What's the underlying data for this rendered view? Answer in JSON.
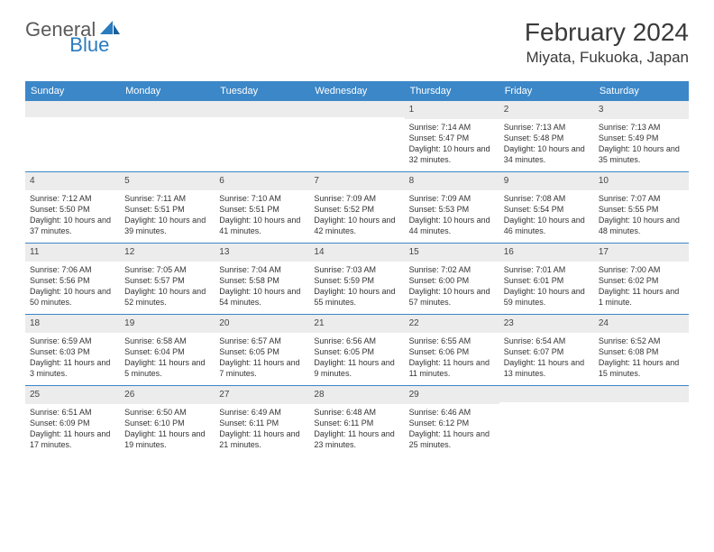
{
  "logo": {
    "text1": "General",
    "text2": "Blue"
  },
  "title": "February 2024",
  "location": "Miyata, Fukuoka, Japan",
  "colors": {
    "header_bg": "#3b87c8",
    "header_text": "#ffffff",
    "daynum_bg": "#ececec",
    "week_border": "#3b87c8",
    "body_text": "#333333",
    "logo_gray": "#5a5a5a",
    "logo_blue": "#2b7bbf"
  },
  "day_names": [
    "Sunday",
    "Monday",
    "Tuesday",
    "Wednesday",
    "Thursday",
    "Friday",
    "Saturday"
  ],
  "weeks": [
    [
      {
        "n": "",
        "sr": "",
        "ss": "",
        "dl": ""
      },
      {
        "n": "",
        "sr": "",
        "ss": "",
        "dl": ""
      },
      {
        "n": "",
        "sr": "",
        "ss": "",
        "dl": ""
      },
      {
        "n": "",
        "sr": "",
        "ss": "",
        "dl": ""
      },
      {
        "n": "1",
        "sr": "Sunrise: 7:14 AM",
        "ss": "Sunset: 5:47 PM",
        "dl": "Daylight: 10 hours and 32 minutes."
      },
      {
        "n": "2",
        "sr": "Sunrise: 7:13 AM",
        "ss": "Sunset: 5:48 PM",
        "dl": "Daylight: 10 hours and 34 minutes."
      },
      {
        "n": "3",
        "sr": "Sunrise: 7:13 AM",
        "ss": "Sunset: 5:49 PM",
        "dl": "Daylight: 10 hours and 35 minutes."
      }
    ],
    [
      {
        "n": "4",
        "sr": "Sunrise: 7:12 AM",
        "ss": "Sunset: 5:50 PM",
        "dl": "Daylight: 10 hours and 37 minutes."
      },
      {
        "n": "5",
        "sr": "Sunrise: 7:11 AM",
        "ss": "Sunset: 5:51 PM",
        "dl": "Daylight: 10 hours and 39 minutes."
      },
      {
        "n": "6",
        "sr": "Sunrise: 7:10 AM",
        "ss": "Sunset: 5:51 PM",
        "dl": "Daylight: 10 hours and 41 minutes."
      },
      {
        "n": "7",
        "sr": "Sunrise: 7:09 AM",
        "ss": "Sunset: 5:52 PM",
        "dl": "Daylight: 10 hours and 42 minutes."
      },
      {
        "n": "8",
        "sr": "Sunrise: 7:09 AM",
        "ss": "Sunset: 5:53 PM",
        "dl": "Daylight: 10 hours and 44 minutes."
      },
      {
        "n": "9",
        "sr": "Sunrise: 7:08 AM",
        "ss": "Sunset: 5:54 PM",
        "dl": "Daylight: 10 hours and 46 minutes."
      },
      {
        "n": "10",
        "sr": "Sunrise: 7:07 AM",
        "ss": "Sunset: 5:55 PM",
        "dl": "Daylight: 10 hours and 48 minutes."
      }
    ],
    [
      {
        "n": "11",
        "sr": "Sunrise: 7:06 AM",
        "ss": "Sunset: 5:56 PM",
        "dl": "Daylight: 10 hours and 50 minutes."
      },
      {
        "n": "12",
        "sr": "Sunrise: 7:05 AM",
        "ss": "Sunset: 5:57 PM",
        "dl": "Daylight: 10 hours and 52 minutes."
      },
      {
        "n": "13",
        "sr": "Sunrise: 7:04 AM",
        "ss": "Sunset: 5:58 PM",
        "dl": "Daylight: 10 hours and 54 minutes."
      },
      {
        "n": "14",
        "sr": "Sunrise: 7:03 AM",
        "ss": "Sunset: 5:59 PM",
        "dl": "Daylight: 10 hours and 55 minutes."
      },
      {
        "n": "15",
        "sr": "Sunrise: 7:02 AM",
        "ss": "Sunset: 6:00 PM",
        "dl": "Daylight: 10 hours and 57 minutes."
      },
      {
        "n": "16",
        "sr": "Sunrise: 7:01 AM",
        "ss": "Sunset: 6:01 PM",
        "dl": "Daylight: 10 hours and 59 minutes."
      },
      {
        "n": "17",
        "sr": "Sunrise: 7:00 AM",
        "ss": "Sunset: 6:02 PM",
        "dl": "Daylight: 11 hours and 1 minute."
      }
    ],
    [
      {
        "n": "18",
        "sr": "Sunrise: 6:59 AM",
        "ss": "Sunset: 6:03 PM",
        "dl": "Daylight: 11 hours and 3 minutes."
      },
      {
        "n": "19",
        "sr": "Sunrise: 6:58 AM",
        "ss": "Sunset: 6:04 PM",
        "dl": "Daylight: 11 hours and 5 minutes."
      },
      {
        "n": "20",
        "sr": "Sunrise: 6:57 AM",
        "ss": "Sunset: 6:05 PM",
        "dl": "Daylight: 11 hours and 7 minutes."
      },
      {
        "n": "21",
        "sr": "Sunrise: 6:56 AM",
        "ss": "Sunset: 6:05 PM",
        "dl": "Daylight: 11 hours and 9 minutes."
      },
      {
        "n": "22",
        "sr": "Sunrise: 6:55 AM",
        "ss": "Sunset: 6:06 PM",
        "dl": "Daylight: 11 hours and 11 minutes."
      },
      {
        "n": "23",
        "sr": "Sunrise: 6:54 AM",
        "ss": "Sunset: 6:07 PM",
        "dl": "Daylight: 11 hours and 13 minutes."
      },
      {
        "n": "24",
        "sr": "Sunrise: 6:52 AM",
        "ss": "Sunset: 6:08 PM",
        "dl": "Daylight: 11 hours and 15 minutes."
      }
    ],
    [
      {
        "n": "25",
        "sr": "Sunrise: 6:51 AM",
        "ss": "Sunset: 6:09 PM",
        "dl": "Daylight: 11 hours and 17 minutes."
      },
      {
        "n": "26",
        "sr": "Sunrise: 6:50 AM",
        "ss": "Sunset: 6:10 PM",
        "dl": "Daylight: 11 hours and 19 minutes."
      },
      {
        "n": "27",
        "sr": "Sunrise: 6:49 AM",
        "ss": "Sunset: 6:11 PM",
        "dl": "Daylight: 11 hours and 21 minutes."
      },
      {
        "n": "28",
        "sr": "Sunrise: 6:48 AM",
        "ss": "Sunset: 6:11 PM",
        "dl": "Daylight: 11 hours and 23 minutes."
      },
      {
        "n": "29",
        "sr": "Sunrise: 6:46 AM",
        "ss": "Sunset: 6:12 PM",
        "dl": "Daylight: 11 hours and 25 minutes."
      },
      {
        "n": "",
        "sr": "",
        "ss": "",
        "dl": ""
      },
      {
        "n": "",
        "sr": "",
        "ss": "",
        "dl": ""
      }
    ]
  ]
}
